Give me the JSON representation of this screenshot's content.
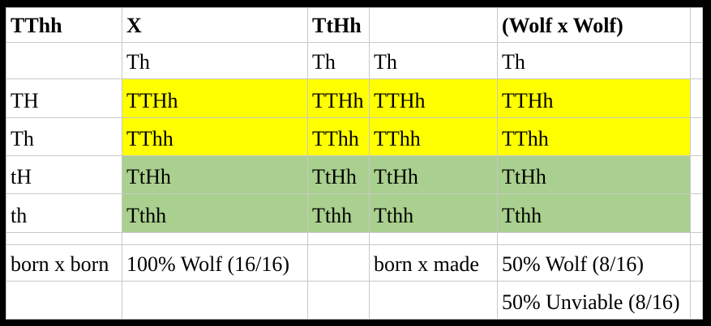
{
  "colors": {
    "yellow": "#ffff00",
    "green": "#a9d08e",
    "gridline": "#c9c9c9",
    "outer_border": "#000000"
  },
  "table": {
    "description": "punnett-square-spreadsheet",
    "rows": [
      {
        "cells": [
          {
            "text": "TThh",
            "bold": true
          },
          {
            "text": "X",
            "bold": true
          },
          {
            "text": "TtHh",
            "bold": true
          },
          {
            "text": ""
          },
          {
            "text": "(Wolf x Wolf)",
            "bold": true
          },
          {
            "text": ""
          }
        ]
      },
      {
        "cells": [
          {
            "text": ""
          },
          {
            "text": "Th"
          },
          {
            "text": "Th"
          },
          {
            "text": "Th"
          },
          {
            "text": "Th"
          },
          {
            "text": ""
          }
        ]
      },
      {
        "cells": [
          {
            "text": "TH"
          },
          {
            "text": "TTHh",
            "bg": "yellow"
          },
          {
            "text": "TTHh",
            "bg": "yellow"
          },
          {
            "text": "TTHh",
            "bg": "yellow"
          },
          {
            "text": "TTHh",
            "bg": "yellow"
          },
          {
            "text": ""
          }
        ]
      },
      {
        "cells": [
          {
            "text": "Th"
          },
          {
            "text": "TThh",
            "bg": "yellow"
          },
          {
            "text": "TThh",
            "bg": "yellow"
          },
          {
            "text": "TThh",
            "bg": "yellow"
          },
          {
            "text": "TThh",
            "bg": "yellow"
          },
          {
            "text": ""
          }
        ]
      },
      {
        "cells": [
          {
            "text": "tH"
          },
          {
            "text": "TtHh",
            "bg": "green"
          },
          {
            "text": "TtHh",
            "bg": "green"
          },
          {
            "text": "TtHh",
            "bg": "green"
          },
          {
            "text": "TtHh",
            "bg": "green"
          },
          {
            "text": ""
          }
        ]
      },
      {
        "cells": [
          {
            "text": "th"
          },
          {
            "text": "Tthh",
            "bg": "green"
          },
          {
            "text": "Tthh",
            "bg": "green"
          },
          {
            "text": "Tthh",
            "bg": "green"
          },
          {
            "text": "Tthh",
            "bg": "green"
          },
          {
            "text": ""
          }
        ]
      },
      {
        "cells": [
          {
            "text": ""
          },
          {
            "text": ""
          },
          {
            "text": ""
          },
          {
            "text": ""
          },
          {
            "text": ""
          },
          {
            "text": ""
          }
        ]
      },
      {
        "cells": [
          {
            "text": "born x born"
          },
          {
            "text": "100% Wolf (16/16)"
          },
          {
            "text": ""
          },
          {
            "text": "born x made"
          },
          {
            "text": "50% Wolf (8/16)"
          },
          {
            "text": ""
          }
        ]
      },
      {
        "cells": [
          {
            "text": ""
          },
          {
            "text": ""
          },
          {
            "text": ""
          },
          {
            "text": ""
          },
          {
            "text": "50% Unviable (8/16)"
          },
          {
            "text": ""
          }
        ]
      }
    ]
  }
}
